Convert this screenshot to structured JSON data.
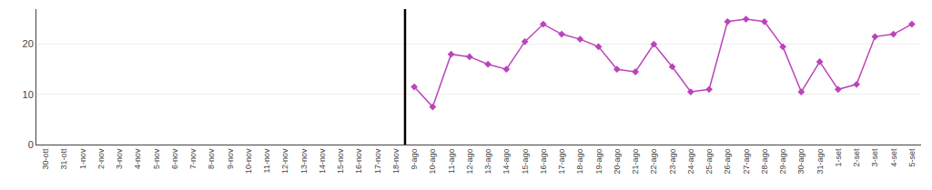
{
  "chart_data": {
    "type": "line",
    "categories": [
      "30-ott",
      "31-ott",
      "1-nov",
      "2-nov",
      "3-nov",
      "4-nov",
      "5-nov",
      "6-nov",
      "7-nov",
      "8-nov",
      "9-nov",
      "10-nov",
      "11-nov",
      "12-nov",
      "13-nov",
      "14-nov",
      "15-nov",
      "16-nov",
      "17-nov",
      "18-nov",
      "9-ago",
      "10-ago",
      "11-ago",
      "12-ago",
      "13-ago",
      "14-ago",
      "15-ago",
      "16-ago",
      "17-ago",
      "18-ago",
      "19-ago",
      "20-ago",
      "21-ago",
      "22-ago",
      "23-ago",
      "24-ago",
      "25-ago",
      "26-ago",
      "27-ago",
      "28-ago",
      "29-ago",
      "30-ago",
      "31-ago",
      "1-set",
      "2-set",
      "3-set",
      "4-set",
      "5-set"
    ],
    "values": [
      null,
      null,
      null,
      null,
      null,
      null,
      null,
      null,
      null,
      null,
      null,
      null,
      null,
      null,
      null,
      null,
      null,
      null,
      null,
      null,
      11.5,
      7.5,
      18.0,
      17.5,
      16.0,
      15.0,
      20.5,
      24.0,
      22.0,
      21.0,
      19.5,
      15.0,
      14.5,
      20.0,
      15.5,
      10.5,
      11.0,
      24.5,
      25.0,
      24.5,
      19.5,
      10.5,
      16.5,
      11.0,
      12.0,
      21.5,
      22.0,
      24.0
    ],
    "color": "#BB44BB",
    "marker": "diamond",
    "ylim": [
      0,
      27
    ],
    "yticks": [
      0,
      10,
      20
    ],
    "grid": true
  }
}
